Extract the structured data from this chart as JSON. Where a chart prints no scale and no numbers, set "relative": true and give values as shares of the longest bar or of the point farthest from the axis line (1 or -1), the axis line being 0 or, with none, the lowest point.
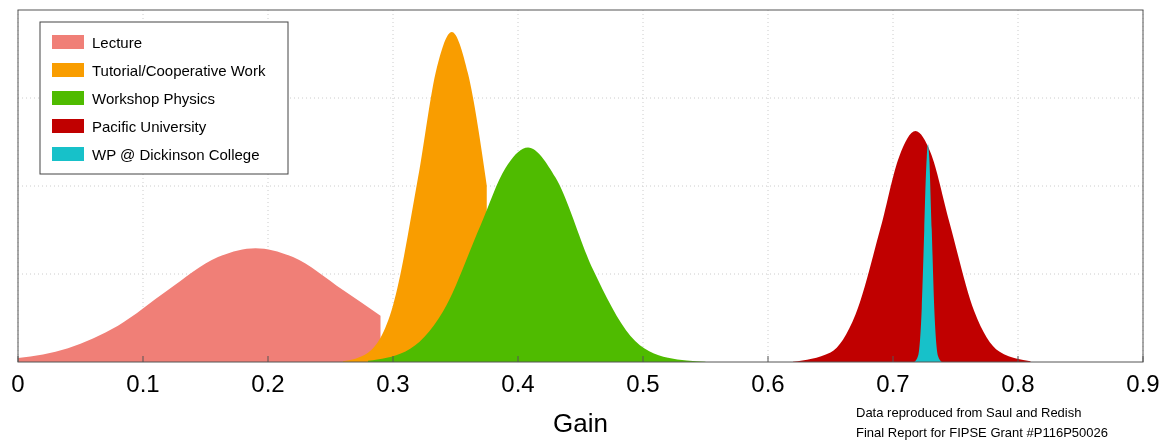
{
  "chart_data": {
    "type": "area",
    "relative": true,
    "xlabel": "Gain",
    "xlim": [
      0,
      0.9
    ],
    "xticks": [
      0,
      0.1,
      0.2,
      0.3,
      0.4,
      0.5,
      0.6,
      0.7,
      0.8,
      0.9
    ],
    "grid": true,
    "legend": "top left",
    "annotations": [
      "Data reproduced from Saul and Redish",
      "Final Report for FIPSE Grant #P116P50026"
    ],
    "series": [
      {
        "name": "Lecture",
        "color": "#f07f77",
        "x": [
          0,
          0.04,
          0.08,
          0.12,
          0.16,
          0.19,
          0.22,
          0.26,
          0.29
        ],
        "values": [
          0.012,
          0.042,
          0.11,
          0.218,
          0.318,
          0.345,
          0.318,
          0.218,
          0.14
        ]
      },
      {
        "name": "Tutorial/Cooperative Work",
        "color": "#f99d00",
        "x": [
          0.26,
          0.28,
          0.3,
          0.32,
          0.335,
          0.347,
          0.36,
          0.375
        ],
        "values": [
          0.002,
          0.028,
          0.171,
          0.558,
          0.891,
          1,
          0.874,
          0.534
        ]
      },
      {
        "name": "Workshop Physics",
        "color": "#4fbb00",
        "x": [
          0.28,
          0.31,
          0.34,
          0.37,
          0.39,
          0.408,
          0.43,
          0.46,
          0.49,
          0.52,
          0.55
        ],
        "values": [
          0.004,
          0.032,
          0.153,
          0.414,
          0.588,
          0.65,
          0.559,
          0.28,
          0.079,
          0.013,
          0.001
        ]
      },
      {
        "name": "Pacific University",
        "color": "#c00000",
        "x": [
          0.62,
          0.65,
          0.67,
          0.69,
          0.705,
          0.718,
          0.73,
          0.745,
          0.765,
          0.785,
          0.81
        ],
        "values": [
          0.001,
          0.029,
          0.144,
          0.406,
          0.623,
          0.7,
          0.635,
          0.425,
          0.154,
          0.032,
          0.002
        ]
      },
      {
        "name": "WP @ Dickinson College",
        "color": "#17c1c9",
        "x": [
          0.717,
          0.72,
          0.723,
          0.725,
          0.727,
          0.728,
          0.729,
          0.731,
          0.733,
          0.736,
          0.739
        ],
        "values": [
          0,
          0.018,
          0.164,
          0.4,
          0.62,
          0.66,
          0.62,
          0.4,
          0.164,
          0.018,
          0
        ]
      }
    ]
  }
}
